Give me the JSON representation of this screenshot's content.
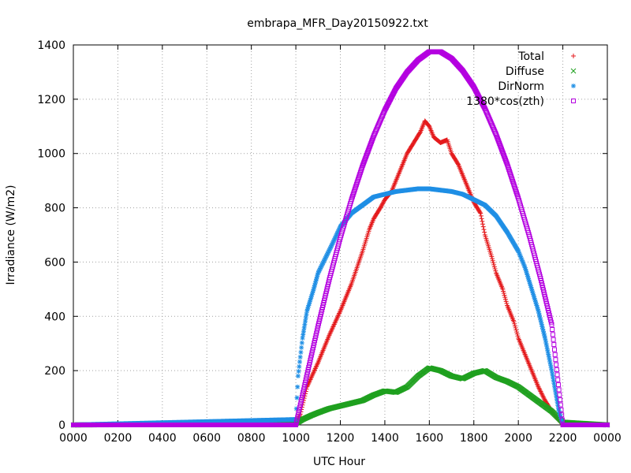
{
  "chart_data": {
    "type": "scatter",
    "title": "embrapa_MFR_Day20150922.txt",
    "xlabel": "UTC Hour",
    "ylabel": "Irradiance (W/m2)",
    "x_ticks": [
      "0000",
      "0200",
      "0400",
      "0600",
      "0800",
      "1000",
      "1200",
      "1400",
      "1600",
      "1800",
      "2000",
      "2200",
      "0000"
    ],
    "y_ticks": [
      "0",
      "200",
      "400",
      "600",
      "800",
      "1000",
      "1200",
      "1400"
    ],
    "xlim": [
      0,
      24
    ],
    "ylim": [
      0,
      1400
    ],
    "grid": true,
    "legend_position": "top-right",
    "series": [
      {
        "name": "Total",
        "marker": "+",
        "color": "#e41a1c",
        "x": [
          0,
          10.0,
          10.2,
          10.5,
          11.0,
          11.5,
          12.0,
          12.5,
          13.0,
          13.3,
          13.5,
          13.8,
          14.0,
          14.3,
          14.5,
          14.7,
          15.0,
          15.3,
          15.6,
          15.8,
          16.0,
          16.2,
          16.5,
          16.8,
          17.0,
          17.3,
          17.6,
          17.8,
          18.0,
          18.3,
          18.5,
          18.8,
          19.0,
          19.3,
          19.5,
          19.8,
          20.0,
          20.3,
          20.6,
          20.9,
          21.2,
          21.5,
          21.8,
          22.0,
          24
        ],
        "y": [
          0,
          5,
          40,
          140,
          230,
          330,
          420,
          520,
          640,
          720,
          760,
          800,
          830,
          860,
          900,
          940,
          1000,
          1040,
          1080,
          1120,
          1100,
          1060,
          1040,
          1050,
          1000,
          960,
          900,
          860,
          820,
          780,
          700,
          620,
          560,
          500,
          440,
          380,
          320,
          260,
          200,
          140,
          90,
          50,
          20,
          0,
          0
        ]
      },
      {
        "name": "Diffuse",
        "marker": "x",
        "color": "#1fa01f",
        "x": [
          0,
          10.0,
          10.3,
          10.7,
          11.0,
          11.5,
          12.0,
          12.5,
          13.0,
          13.5,
          14.0,
          14.5,
          15.0,
          15.5,
          16.0,
          16.5,
          17.0,
          17.5,
          18.0,
          18.5,
          19.0,
          19.5,
          20.0,
          20.5,
          21.0,
          21.5,
          22.0,
          24
        ],
        "y": [
          0,
          5,
          20,
          35,
          45,
          60,
          70,
          80,
          90,
          110,
          125,
          120,
          140,
          180,
          210,
          200,
          180,
          170,
          190,
          200,
          175,
          160,
          140,
          110,
          80,
          50,
          10,
          0
        ]
      },
      {
        "name": "DirNorm",
        "marker": "*",
        "color": "#1f8fe5",
        "x": [
          0,
          10.0,
          10.1,
          10.3,
          10.5,
          10.8,
          11.0,
          11.3,
          11.6,
          12.0,
          12.5,
          13.0,
          13.5,
          14.0,
          14.5,
          15.0,
          15.5,
          16.0,
          16.5,
          17.0,
          17.5,
          18.0,
          18.5,
          19.0,
          19.5,
          20.0,
          20.3,
          20.6,
          20.9,
          21.2,
          21.5,
          21.8,
          22.0,
          24
        ],
        "y": [
          0,
          20,
          180,
          320,
          420,
          500,
          560,
          610,
          660,
          730,
          780,
          810,
          840,
          850,
          860,
          865,
          870,
          870,
          865,
          860,
          850,
          830,
          810,
          770,
          710,
          640,
          580,
          500,
          420,
          320,
          200,
          60,
          0,
          0
        ]
      },
      {
        "name": "1380*cos(zth)",
        "marker": "square",
        "color": "#b400e0",
        "x": [
          0,
          10.0,
          10.5,
          11.0,
          11.5,
          12.0,
          12.5,
          13.0,
          13.5,
          14.0,
          14.5,
          15.0,
          15.5,
          16.0,
          16.5,
          17.0,
          17.5,
          18.0,
          18.5,
          19.0,
          19.5,
          20.0,
          20.5,
          21.0,
          21.5,
          22.0,
          24
        ],
        "y": [
          0,
          0,
          185,
          365,
          535,
          690,
          830,
          955,
          1065,
          1160,
          1240,
          1300,
          1345,
          1375,
          1375,
          1350,
          1305,
          1245,
          1165,
          1070,
          960,
          835,
          695,
          540,
          370,
          0,
          0
        ]
      }
    ]
  }
}
